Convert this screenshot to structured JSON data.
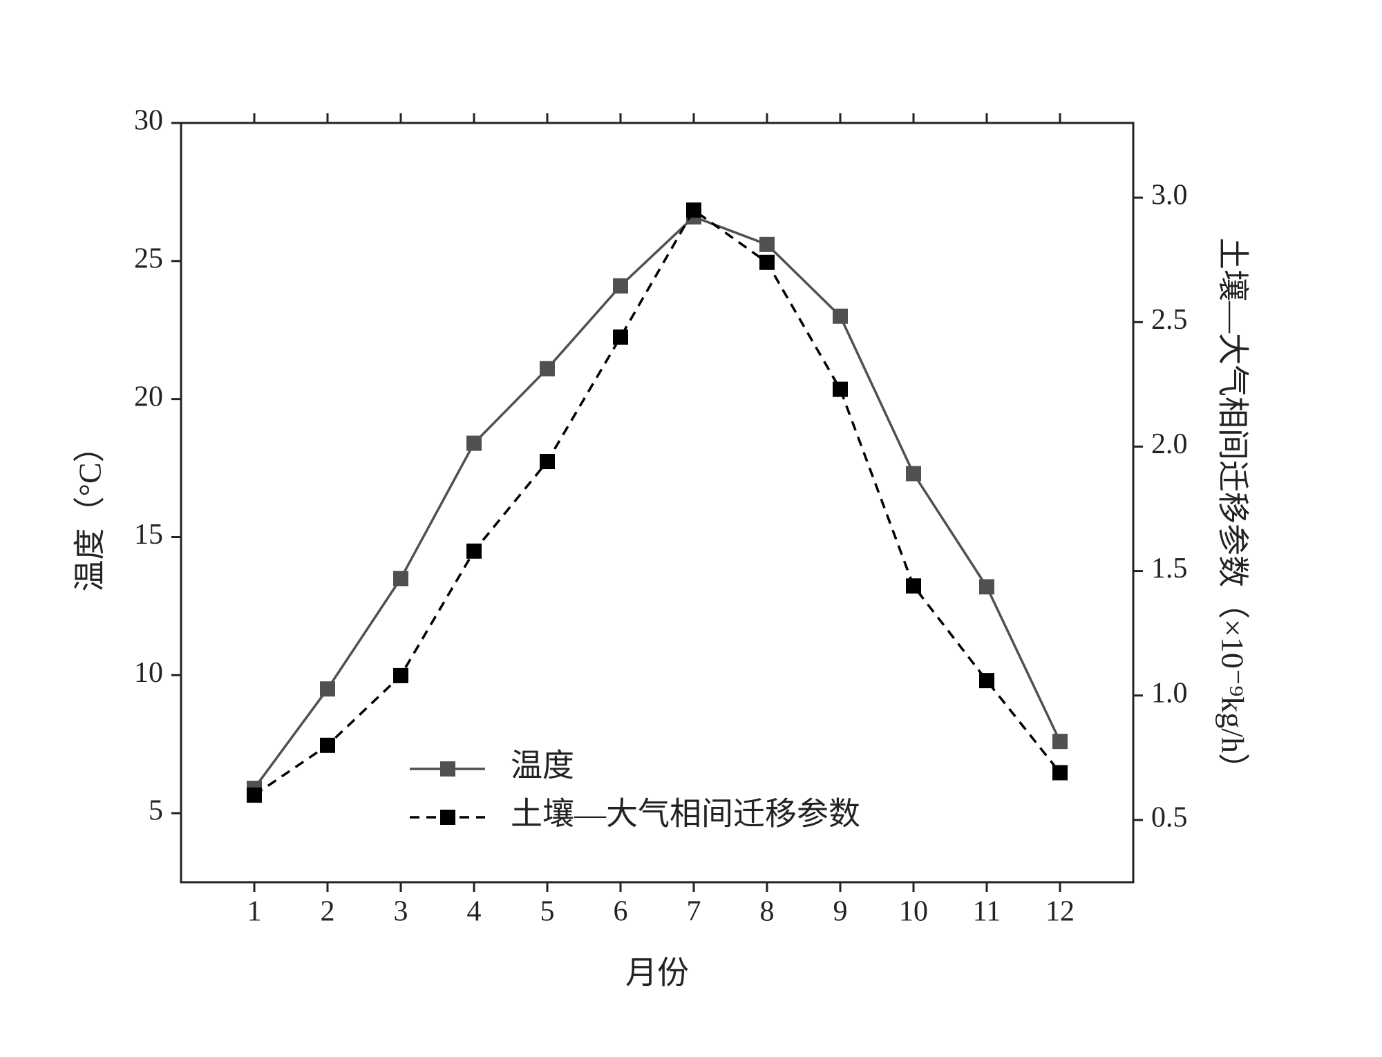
{
  "chart_data": {
    "type": "line",
    "x_label": "月份",
    "y_label": "温度（°C）",
    "y2_label": "土壤—大气相间迁移参数（×10⁻⁹kg/h）",
    "x": [
      1,
      2,
      3,
      4,
      5,
      6,
      7,
      8,
      9,
      10,
      11,
      12
    ],
    "xlim": [
      0,
      13
    ],
    "xticks": [
      1,
      2,
      3,
      4,
      5,
      6,
      7,
      8,
      9,
      10,
      11,
      12
    ],
    "ylim": [
      2.5,
      30
    ],
    "yticks": [
      5,
      10,
      15,
      20,
      25,
      30
    ],
    "y2lim": [
      0.25,
      3.3
    ],
    "y2ticks": [
      0.5,
      {
        "value": 1,
        "label": "1.0"
      },
      1.5,
      {
        "value": 2,
        "label": "2.0"
      },
      2.5,
      {
        "value": 3,
        "label": "3.0"
      }
    ],
    "grid": false,
    "legend": "lower center",
    "marker": "square",
    "series": [
      {
        "name": "温度",
        "color": "#505050",
        "line_style": "solid",
        "values": [
          5.9,
          9.5,
          13.5,
          18.4,
          21.1,
          24.1,
          26.6,
          25.6,
          23.0,
          17.3,
          13.2,
          7.6
        ]
      },
      {
        "name": "土壤—大气相间迁移参数",
        "color": "#000000",
        "line_style": "dashed",
        "axis": "y2",
        "values": [
          0.6,
          0.8,
          1.08,
          1.58,
          1.94,
          2.44,
          2.95,
          2.74,
          2.23,
          1.44,
          1.06,
          0.69
        ]
      }
    ]
  }
}
